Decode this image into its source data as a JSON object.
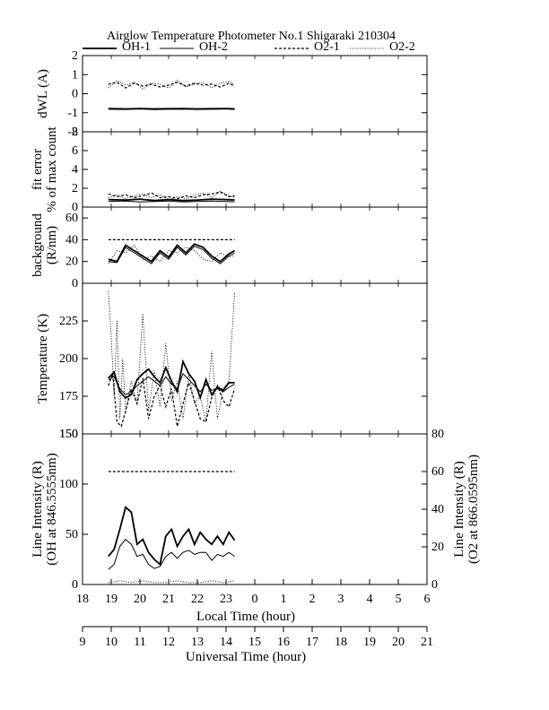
{
  "chart_data": {
    "type": "line",
    "title": "Airglow Temperature Photometer No.1  Shigaraki  210304",
    "legend": {
      "placement": "top",
      "entries": [
        {
          "name": "OH-1",
          "style": "solid-thick"
        },
        {
          "name": "OH-2",
          "style": "solid-thin"
        },
        {
          "name": "O2-1",
          "style": "dashed"
        },
        {
          "name": "O2-2",
          "style": "dotted"
        }
      ]
    },
    "x_axis": {
      "label": "Local Time (hour)",
      "range_ut": [
        9,
        21
      ],
      "ticks": [
        "18",
        "19",
        "20",
        "21",
        "22",
        "23",
        "0",
        "1",
        "2",
        "3",
        "4",
        "5",
        "6"
      ]
    },
    "x2_axis": {
      "label": "Universal Time (hour)",
      "ticks": [
        "9",
        "10",
        "11",
        "12",
        "13",
        "14",
        "15",
        "16",
        "17",
        "18",
        "19",
        "20",
        "21"
      ]
    },
    "panels": [
      {
        "ylabel": [
          "dWL (A)"
        ],
        "ylim": [
          -2,
          2
        ],
        "yticks": [
          "2",
          "1",
          "0",
          "-1",
          "-2"
        ],
        "series": [
          {
            "name": "OH-1",
            "x": [
              9.9,
              10.5,
              11.0,
              11.5,
              12.0,
              12.5,
              13.0,
              13.5,
              14.0,
              14.3
            ],
            "y": [
              -0.78,
              -0.8,
              -0.78,
              -0.8,
              -0.79,
              -0.78,
              -0.8,
              -0.79,
              -0.78,
              -0.8
            ]
          },
          {
            "name": "OH-2",
            "x": [
              9.9,
              10.5,
              11.0,
              11.5,
              12.0,
              12.5,
              13.0,
              13.5,
              14.0,
              14.3
            ],
            "y": [
              -0.82,
              -0.83,
              -0.8,
              -0.84,
              -0.82,
              -0.81,
              -0.83,
              -0.82,
              -0.8,
              -0.83
            ]
          },
          {
            "name": "O2-1",
            "x": [
              9.9,
              10.2,
              10.5,
              10.8,
              11.1,
              11.4,
              11.7,
              12.0,
              12.3,
              12.6,
              12.9,
              13.2,
              13.5,
              13.8,
              14.1,
              14.3
            ],
            "y": [
              0.5,
              0.6,
              0.3,
              0.55,
              0.4,
              0.5,
              0.35,
              0.45,
              0.6,
              0.4,
              0.55,
              0.45,
              0.5,
              0.35,
              0.55,
              0.4
            ]
          },
          {
            "name": "O2-2",
            "x": [
              9.9,
              10.2,
              10.5,
              10.8,
              11.1,
              11.4,
              11.7,
              12.0,
              12.3,
              12.6,
              12.9,
              13.2,
              13.5,
              13.8,
              14.1,
              14.3
            ],
            "y": [
              0.3,
              0.7,
              0.45,
              0.6,
              0.25,
              0.55,
              0.5,
              0.3,
              0.7,
              0.35,
              0.5,
              0.6,
              0.3,
              0.55,
              0.65,
              0.5
            ]
          }
        ]
      },
      {
        "ylabel": [
          "fit error",
          "% of max count"
        ],
        "ylim": [
          0,
          8
        ],
        "yticks": [
          "8",
          "6",
          "4",
          "2",
          "0"
        ],
        "series": [
          {
            "name": "OH-1",
            "x": [
              9.9,
              10.5,
              11.0,
              11.5,
              12.0,
              12.5,
              13.0,
              13.5,
              14.0,
              14.3
            ],
            "y": [
              0.8,
              0.75,
              0.85,
              0.7,
              0.8,
              0.7,
              0.75,
              0.85,
              0.8,
              0.75
            ]
          },
          {
            "name": "OH-2",
            "x": [
              9.9,
              10.5,
              11.0,
              11.5,
              12.0,
              12.5,
              13.0,
              13.5,
              14.0,
              14.3
            ],
            "y": [
              0.6,
              0.65,
              0.55,
              0.6,
              0.65,
              0.55,
              0.6,
              0.65,
              0.6,
              0.55
            ]
          },
          {
            "name": "O2-1",
            "x": [
              9.9,
              10.2,
              10.5,
              10.8,
              11.1,
              11.4,
              11.7,
              12.0,
              12.3,
              12.6,
              12.9,
              13.2,
              13.5,
              13.8,
              14.1,
              14.3
            ],
            "y": [
              1.4,
              1.1,
              1.3,
              1.0,
              1.2,
              1.5,
              1.0,
              1.1,
              0.9,
              1.2,
              1.0,
              1.3,
              1.4,
              1.6,
              1.1,
              1.2
            ]
          },
          {
            "name": "O2-2",
            "x": [
              9.9,
              10.2,
              10.5,
              10.8,
              11.1,
              11.4,
              11.7,
              12.0,
              12.3,
              12.6,
              12.9,
              13.2,
              13.5,
              13.8,
              14.1,
              14.3
            ],
            "y": [
              1.0,
              1.3,
              0.9,
              1.2,
              1.4,
              1.0,
              1.3,
              0.8,
              1.1,
              0.9,
              1.3,
              1.5,
              1.0,
              1.7,
              1.2,
              1.0
            ]
          }
        ]
      },
      {
        "ylabel": [
          "background",
          "(R/nm)"
        ],
        "ylim": [
          0,
          70
        ],
        "yticks": [
          "60",
          "40",
          "20",
          "0"
        ],
        "series": [
          {
            "name": "OH-1",
            "x": [
              9.9,
              10.2,
              10.5,
              10.8,
              11.1,
              11.4,
              11.7,
              12.0,
              12.3,
              12.6,
              12.9,
              13.2,
              13.5,
              13.8,
              14.1,
              14.3
            ],
            "y": [
              22,
              20,
              35,
              30,
              25,
              20,
              30,
              24,
              35,
              28,
              36,
              33,
              25,
              20,
              27,
              30
            ]
          },
          {
            "name": "OH-2",
            "x": [
              9.9,
              10.2,
              10.5,
              10.8,
              11.1,
              11.4,
              11.7,
              12.0,
              12.3,
              12.6,
              12.9,
              13.2,
              13.5,
              13.8,
              14.1,
              14.3
            ],
            "y": [
              20,
              19,
              33,
              28,
              23,
              18,
              28,
              22,
              33,
              26,
              34,
              31,
              23,
              18,
              25,
              28
            ]
          },
          {
            "name": "O2-1",
            "x": [
              9.9,
              14.3
            ],
            "y": [
              40,
              40
            ]
          },
          {
            "name": "O2-2",
            "x": [
              9.9,
              10.2,
              10.5,
              10.8,
              11.1,
              11.4,
              11.7,
              12.0,
              12.3,
              12.6,
              12.9,
              13.2,
              13.5,
              13.8,
              14.1,
              14.3
            ],
            "y": [
              18,
              30,
              28,
              35,
              22,
              25,
              20,
              30,
              28,
              33,
              30,
              22,
              20,
              28,
              24,
              26
            ]
          }
        ]
      },
      {
        "ylabel": [
          "Temperature (K)"
        ],
        "ylim": [
          150,
          250
        ],
        "yticks": [
          "225",
          "200",
          "175",
          "150"
        ],
        "series": [
          {
            "name": "OH-1",
            "x": [
              9.9,
              10.1,
              10.3,
              10.5,
              10.7,
              10.9,
              11.1,
              11.3,
              11.5,
              11.7,
              11.9,
              12.1,
              12.3,
              12.5,
              12.7,
              12.9,
              13.1,
              13.3,
              13.5,
              13.7,
              13.9,
              14.1,
              14.3
            ],
            "y": [
              187,
              191,
              178,
              174,
              176,
              186,
              190,
              193,
              188,
              184,
              194,
              185,
              178,
              198,
              190,
              185,
              174,
              186,
              176,
              181,
              179,
              184,
              184
            ]
          },
          {
            "name": "OH-2",
            "x": [
              9.9,
              10.1,
              10.3,
              10.5,
              10.7,
              10.9,
              11.1,
              11.3,
              11.5,
              11.7,
              11.9,
              12.1,
              12.3,
              12.5,
              12.7,
              12.9,
              13.1,
              13.3,
              13.5,
              13.7,
              13.9,
              14.1,
              14.3
            ],
            "y": [
              186,
              188,
              180,
              176,
              178,
              182,
              185,
              188,
              185,
              182,
              188,
              183,
              180,
              190,
              186,
              182,
              178,
              183,
              179,
              180,
              178,
              181,
              183
            ]
          },
          {
            "name": "O2-1",
            "x": [
              9.9,
              10.05,
              10.2,
              10.35,
              10.5,
              10.7,
              10.9,
              11.1,
              11.3,
              11.5,
              11.7,
              11.9,
              12.1,
              12.3,
              12.5,
              12.7,
              12.9,
              13.1,
              13.3,
              13.5,
              13.7,
              13.9,
              14.1,
              14.3
            ],
            "y": [
              182,
              190,
              158,
              155,
              165,
              180,
              170,
              187,
              160,
              175,
              182,
              168,
              180,
              155,
              170,
              184,
              172,
              160,
              158,
              174,
              182,
              172,
              168,
              180
            ]
          },
          {
            "name": "O2-2",
            "x": [
              9.9,
              10.0,
              10.1,
              10.2,
              10.3,
              10.4,
              10.5,
              10.7,
              10.9,
              11.1,
              11.3,
              11.5,
              11.7,
              11.9,
              12.1,
              12.3,
              12.5,
              12.7,
              12.9,
              13.1,
              13.3,
              13.5,
              13.7,
              13.9,
              14.1,
              14.3
            ],
            "y": [
              245,
              215,
              175,
              225,
              160,
              200,
              165,
              185,
              170,
              230,
              165,
              192,
              168,
              210,
              172,
              185,
              160,
              190,
              170,
              175,
              158,
              205,
              160,
              180,
              185,
              244
            ]
          }
        ]
      },
      {
        "ylabel": [
          "Line Intensity (R)",
          "(OH at 846.5555nm)"
        ],
        "ylim": [
          0,
          150
        ],
        "yticks": [
          "150",
          "100",
          "50",
          "0"
        ],
        "y2label": [
          "Line Intensity (R)",
          "(O2 at 866.0595nm)"
        ],
        "y2lim": [
          0,
          80
        ],
        "y2ticks": [
          "80",
          "60",
          "40",
          "20",
          "0"
        ],
        "series": [
          {
            "name": "OH-1",
            "axis": "left",
            "x": [
              9.9,
              10.1,
              10.3,
              10.5,
              10.7,
              10.9,
              11.1,
              11.3,
              11.5,
              11.7,
              11.9,
              12.1,
              12.3,
              12.5,
              12.7,
              12.9,
              13.1,
              13.3,
              13.5,
              13.7,
              13.9,
              14.1,
              14.3
            ],
            "y": [
              28,
              35,
              55,
              77,
              72,
              40,
              45,
              32,
              25,
              20,
              48,
              55,
              38,
              48,
              55,
              40,
              52,
              45,
              40,
              48,
              40,
              52,
              44
            ]
          },
          {
            "name": "OH-2",
            "axis": "left",
            "x": [
              9.9,
              10.1,
              10.3,
              10.5,
              10.7,
              10.9,
              11.1,
              11.3,
              11.5,
              11.7,
              11.9,
              12.1,
              12.3,
              12.5,
              12.7,
              12.9,
              13.1,
              13.3,
              13.5,
              13.7,
              13.9,
              14.1,
              14.3
            ],
            "y": [
              15,
              20,
              38,
              45,
              40,
              28,
              30,
              20,
              16,
              18,
              28,
              32,
              26,
              32,
              34,
              30,
              32,
              32,
              24,
              30,
              28,
              32,
              28
            ]
          },
          {
            "name": "O2-1",
            "axis": "right",
            "x": [
              9.9,
              14.3
            ],
            "y": [
              60,
              60
            ]
          },
          {
            "name": "O2-2",
            "axis": "right",
            "x": [
              9.9,
              10.3,
              10.7,
              11.1,
              11.5,
              11.9,
              12.3,
              12.7,
              13.1,
              13.5,
              13.9,
              14.3
            ],
            "y": [
              1,
              2,
              1,
              2,
              1,
              1,
              2,
              1,
              1,
              2,
              1,
              2
            ]
          }
        ]
      }
    ]
  }
}
